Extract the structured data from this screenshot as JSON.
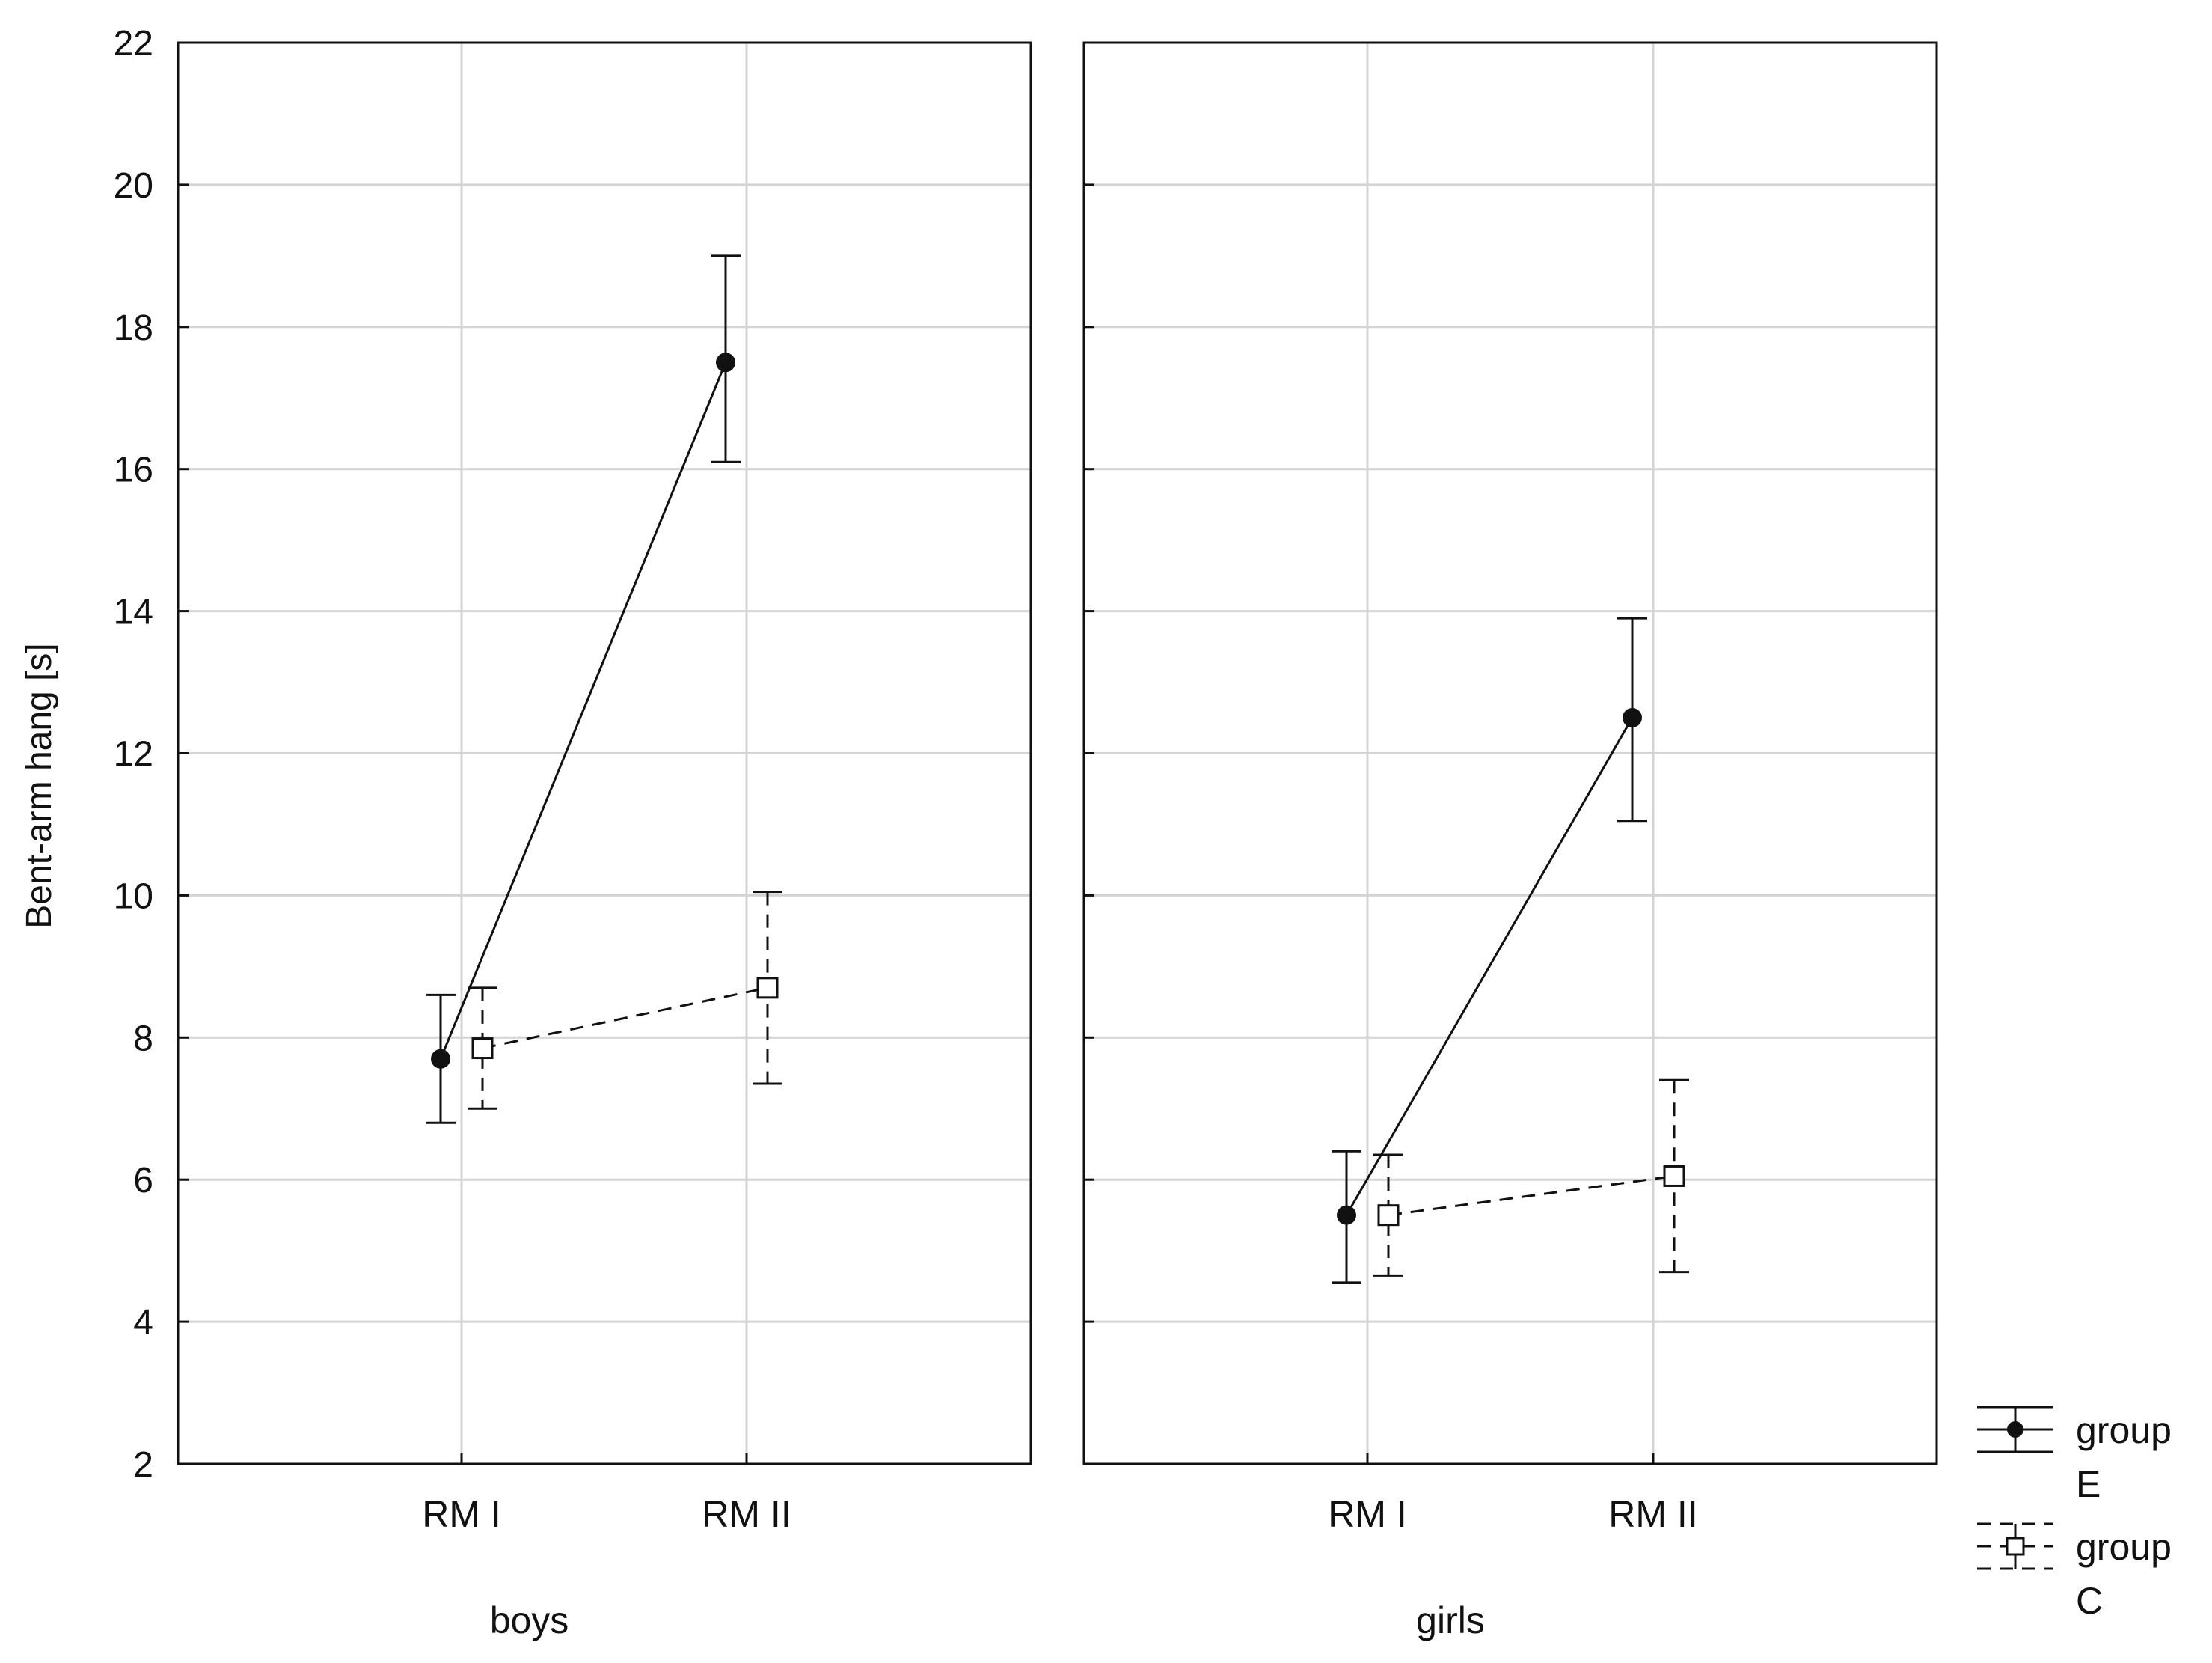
{
  "chart_data": {
    "type": "line",
    "ylabel": "Bent-arm hang [s]",
    "ylim": [
      2,
      22
    ],
    "yticks": [
      2,
      4,
      6,
      8,
      10,
      12,
      14,
      16,
      18,
      20,
      22
    ],
    "categories": [
      "RM I",
      "RM II"
    ],
    "grid": true,
    "legend_position": "bottom-right",
    "panels": [
      {
        "label": "boys",
        "series": [
          {
            "name": "group E",
            "values": [
              7.7,
              17.5
            ],
            "lower": [
              6.8,
              16.1
            ],
            "upper": [
              8.6,
              19.0
            ]
          },
          {
            "name": "group C",
            "values": [
              7.85,
              8.7
            ],
            "lower": [
              7.0,
              7.35
            ],
            "upper": [
              8.7,
              10.05
            ]
          }
        ]
      },
      {
        "label": "girls",
        "series": [
          {
            "name": "group E",
            "values": [
              5.5,
              12.5
            ],
            "lower": [
              4.55,
              11.05
            ],
            "upper": [
              6.4,
              13.9
            ]
          },
          {
            "name": "group C",
            "values": [
              5.5,
              6.05
            ],
            "lower": [
              4.65,
              4.7
            ],
            "upper": [
              6.35,
              7.4
            ]
          }
        ]
      }
    ],
    "legend": [
      {
        "line1": "group",
        "line2": "E"
      },
      {
        "line1": "group",
        "line2": "C"
      }
    ]
  }
}
